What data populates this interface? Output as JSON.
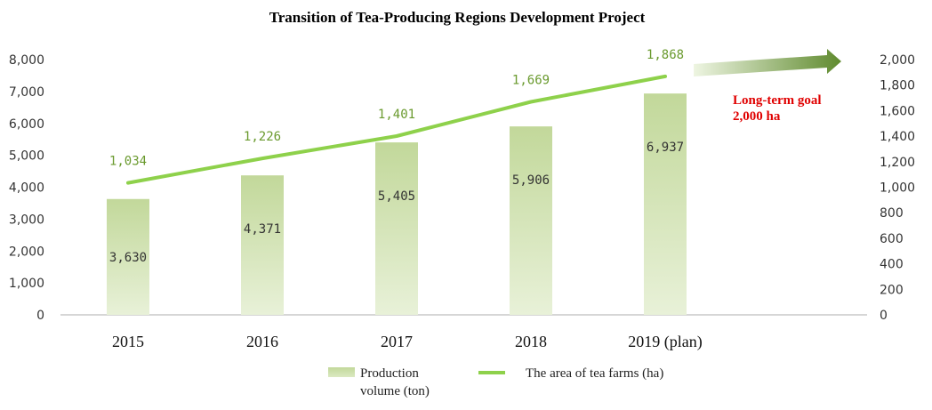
{
  "chart_data": {
    "type": "bar+line",
    "title": "Transition  of Tea-Producing Regions Development Project",
    "categories": [
      "2015",
      "2016",
      "2017",
      "2018",
      "2019 (plan)"
    ],
    "series": [
      {
        "name": "Production volume (ton)",
        "type": "bar",
        "axis": "left",
        "values": [
          3630,
          4371,
          5405,
          5906,
          6937
        ],
        "labels": [
          "3,630",
          "4,371",
          "5,405",
          "5,906",
          "6,937"
        ]
      },
      {
        "name": "The area of tea farms (ha)",
        "type": "line",
        "axis": "right",
        "values": [
          1034,
          1226,
          1401,
          1669,
          1868
        ],
        "labels": [
          "1,034",
          "1,226",
          "1,401",
          "1,669",
          "1,868"
        ]
      }
    ],
    "y_left": {
      "ylim": [
        0,
        8000
      ],
      "ticks": [
        "0",
        "1,000",
        "2,000",
        "3,000",
        "4,000",
        "5,000",
        "6,000",
        "7,000",
        "8,000"
      ]
    },
    "y_right": {
      "ylim": [
        0,
        2000
      ],
      "ticks": [
        "0",
        "200",
        "400",
        "600",
        "800",
        "1,000",
        "1,200",
        "1,400",
        "1,600",
        "1,800",
        "2,000"
      ]
    },
    "annotation": {
      "lines": [
        "Long-term goal",
        "2,000 ha"
      ],
      "goal_value": 2000
    },
    "legend": {
      "position": "bottom",
      "bar_label_lines": [
        "Production",
        "volume (ton)"
      ],
      "line_label": "The area of tea farms (ha)"
    },
    "colors": {
      "bar_top": "#c2d89a",
      "bar_bottom": "#e8f1d8",
      "line": "#8ed14b",
      "line_label": "#6a9a2e",
      "arrow_dark": "#5f8a2e",
      "arrow_light": "#e8f1d8",
      "goal_text": "#e00000",
      "axis": "#c8c8c8"
    },
    "grid": false
  }
}
